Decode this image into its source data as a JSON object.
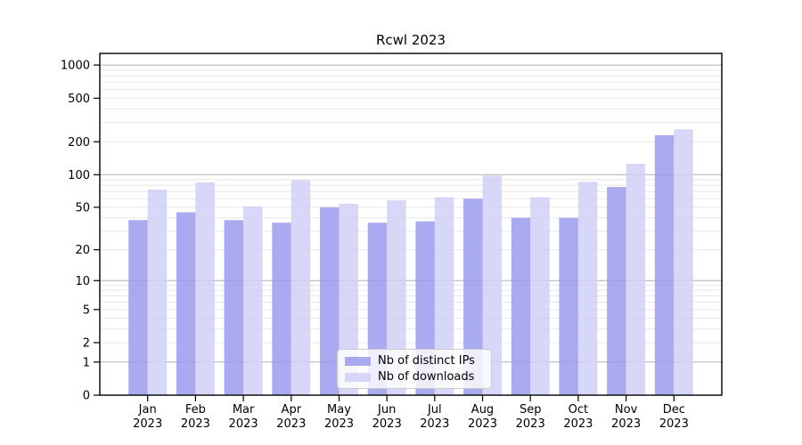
{
  "title": "Rcwl 2023",
  "legend": {
    "entries": [
      {
        "label": "Nb of distinct IPs",
        "color": "#9b9bee"
      },
      {
        "label": "Nb of downloads",
        "color": "#d0d0f6"
      }
    ]
  },
  "chart_data": {
    "type": "bar",
    "title": "Rcwl 2023",
    "categories": [
      "Jan 2023",
      "Feb 2023",
      "Mar 2023",
      "Apr 2023",
      "May 2023",
      "Jun 2023",
      "Jul 2023",
      "Aug 2023",
      "Sep 2023",
      "Oct 2023",
      "Nov 2023",
      "Dec 2023"
    ],
    "series": [
      {
        "name": "Nb of distinct IPs",
        "color": "#9b9bee",
        "values": [
          38,
          45,
          38,
          36,
          50,
          36,
          37,
          60,
          40,
          40,
          77,
          230
        ]
      },
      {
        "name": "Nb of downloads",
        "color": "#d0d0f6",
        "values": [
          73,
          85,
          51,
          89,
          54,
          58,
          62,
          98,
          62,
          86,
          126,
          260
        ]
      }
    ],
    "xlabel": "",
    "ylabel": "",
    "y_scale": "log10(value+1)",
    "y_ticks": [
      0,
      1,
      2,
      5,
      10,
      20,
      50,
      100,
      200,
      500,
      1000
    ],
    "ylim": [
      0,
      1280
    ],
    "grid": "horizontal: major at 1/10/100/1000, minor at 2-9 per decade",
    "legend_position": "lower center, inside plot",
    "colors": {
      "major_grid": "#b0b0b0",
      "minor_grid": "#e8e8e8",
      "axis": "#000000",
      "background": "#ffffff"
    }
  }
}
